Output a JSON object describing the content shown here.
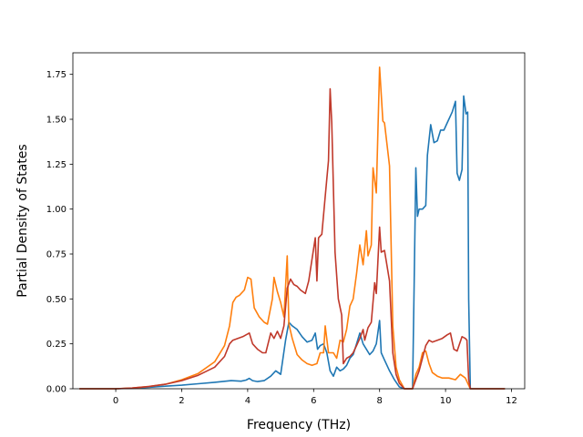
{
  "chart_data": {
    "type": "line",
    "title": "",
    "xlabel": "Frequency (THz)",
    "ylabel": "Partial Density of States",
    "xlim": [
      -1.3,
      12.4
    ],
    "ylim": [
      0,
      1.87
    ],
    "xticks": [
      0,
      2,
      4,
      6,
      8,
      10,
      12
    ],
    "yticks": [
      0.0,
      0.25,
      0.5,
      0.75,
      1.0,
      1.25,
      1.5,
      1.75
    ],
    "ytick_labels": [
      "0.00",
      "0.25",
      "0.50",
      "0.75",
      "1.00",
      "1.25",
      "1.50",
      "1.75"
    ],
    "grid": false,
    "legend": "none",
    "series": [
      {
        "color": "#1f77b4",
        "points": [
          [
            -1.1,
            0
          ],
          [
            0,
            0
          ],
          [
            0.5,
            0.003
          ],
          [
            1,
            0.008
          ],
          [
            1.5,
            0.014
          ],
          [
            2,
            0.02
          ],
          [
            2.5,
            0.028
          ],
          [
            3,
            0.036
          ],
          [
            3.5,
            0.045
          ],
          [
            3.8,
            0.042
          ],
          [
            3.95,
            0.048
          ],
          [
            4.05,
            0.058
          ],
          [
            4.15,
            0.045
          ],
          [
            4.3,
            0.04
          ],
          [
            4.5,
            0.045
          ],
          [
            4.7,
            0.07
          ],
          [
            4.85,
            0.1
          ],
          [
            5.0,
            0.08
          ],
          [
            5.15,
            0.27
          ],
          [
            5.25,
            0.37
          ],
          [
            5.35,
            0.35
          ],
          [
            5.5,
            0.33
          ],
          [
            5.65,
            0.29
          ],
          [
            5.8,
            0.26
          ],
          [
            5.95,
            0.27
          ],
          [
            6.05,
            0.31
          ],
          [
            6.12,
            0.22
          ],
          [
            6.2,
            0.24
          ],
          [
            6.3,
            0.25
          ],
          [
            6.4,
            0.2
          ],
          [
            6.5,
            0.1
          ],
          [
            6.6,
            0.07
          ],
          [
            6.7,
            0.12
          ],
          [
            6.8,
            0.1
          ],
          [
            6.9,
            0.11
          ],
          [
            7.0,
            0.13
          ],
          [
            7.1,
            0.17
          ],
          [
            7.2,
            0.19
          ],
          [
            7.3,
            0.25
          ],
          [
            7.4,
            0.31
          ],
          [
            7.5,
            0.25
          ],
          [
            7.6,
            0.22
          ],
          [
            7.7,
            0.19
          ],
          [
            7.8,
            0.21
          ],
          [
            7.9,
            0.25
          ],
          [
            8.0,
            0.38
          ],
          [
            8.05,
            0.2
          ],
          [
            8.15,
            0.16
          ],
          [
            8.3,
            0.1
          ],
          [
            8.45,
            0.05
          ],
          [
            8.6,
            0.01
          ],
          [
            8.75,
            0
          ],
          [
            9.0,
            0
          ],
          [
            9.05,
            0.6
          ],
          [
            9.1,
            1.23
          ],
          [
            9.15,
            0.96
          ],
          [
            9.2,
            1.0
          ],
          [
            9.3,
            1.0
          ],
          [
            9.4,
            1.02
          ],
          [
            9.45,
            1.3
          ],
          [
            9.55,
            1.47
          ],
          [
            9.65,
            1.37
          ],
          [
            9.75,
            1.38
          ],
          [
            9.85,
            1.44
          ],
          [
            9.95,
            1.44
          ],
          [
            10.05,
            1.48
          ],
          [
            10.2,
            1.54
          ],
          [
            10.3,
            1.6
          ],
          [
            10.35,
            1.2
          ],
          [
            10.42,
            1.16
          ],
          [
            10.5,
            1.22
          ],
          [
            10.55,
            1.63
          ],
          [
            10.62,
            1.53
          ],
          [
            10.67,
            1.54
          ],
          [
            10.7,
            0.5
          ],
          [
            10.75,
            0
          ],
          [
            11.8,
            0
          ]
        ]
      },
      {
        "color": "#ff7f0e",
        "points": [
          [
            -1.1,
            0
          ],
          [
            0,
            0
          ],
          [
            0.5,
            0.004
          ],
          [
            1,
            0.012
          ],
          [
            1.5,
            0.025
          ],
          [
            2,
            0.05
          ],
          [
            2.5,
            0.085
          ],
          [
            3,
            0.15
          ],
          [
            3.3,
            0.24
          ],
          [
            3.45,
            0.35
          ],
          [
            3.55,
            0.48
          ],
          [
            3.65,
            0.51
          ],
          [
            3.75,
            0.52
          ],
          [
            3.9,
            0.55
          ],
          [
            4.0,
            0.62
          ],
          [
            4.1,
            0.61
          ],
          [
            4.2,
            0.45
          ],
          [
            4.35,
            0.4
          ],
          [
            4.5,
            0.37
          ],
          [
            4.6,
            0.36
          ],
          [
            4.75,
            0.5
          ],
          [
            4.8,
            0.62
          ],
          [
            4.9,
            0.54
          ],
          [
            5.0,
            0.48
          ],
          [
            5.1,
            0.4
          ],
          [
            5.2,
            0.74
          ],
          [
            5.25,
            0.36
          ],
          [
            5.35,
            0.28
          ],
          [
            5.5,
            0.19
          ],
          [
            5.65,
            0.16
          ],
          [
            5.8,
            0.14
          ],
          [
            5.95,
            0.13
          ],
          [
            6.1,
            0.14
          ],
          [
            6.2,
            0.2
          ],
          [
            6.3,
            0.2
          ],
          [
            6.35,
            0.35
          ],
          [
            6.45,
            0.2
          ],
          [
            6.6,
            0.2
          ],
          [
            6.7,
            0.17
          ],
          [
            6.8,
            0.27
          ],
          [
            6.9,
            0.26
          ],
          [
            7.0,
            0.33
          ],
          [
            7.1,
            0.46
          ],
          [
            7.2,
            0.5
          ],
          [
            7.3,
            0.64
          ],
          [
            7.4,
            0.8
          ],
          [
            7.5,
            0.69
          ],
          [
            7.6,
            0.88
          ],
          [
            7.65,
            0.74
          ],
          [
            7.75,
            0.8
          ],
          [
            7.8,
            1.23
          ],
          [
            7.9,
            1.09
          ],
          [
            8.0,
            1.79
          ],
          [
            8.1,
            1.49
          ],
          [
            8.15,
            1.48
          ],
          [
            8.3,
            1.24
          ],
          [
            8.4,
            0.35
          ],
          [
            8.5,
            0.12
          ],
          [
            8.6,
            0.05
          ],
          [
            8.75,
            0
          ],
          [
            9.0,
            0
          ],
          [
            9.1,
            0.08
          ],
          [
            9.2,
            0.12
          ],
          [
            9.3,
            0.2
          ],
          [
            9.4,
            0.21
          ],
          [
            9.5,
            0.14
          ],
          [
            9.6,
            0.09
          ],
          [
            9.75,
            0.07
          ],
          [
            9.9,
            0.06
          ],
          [
            10.1,
            0.06
          ],
          [
            10.3,
            0.05
          ],
          [
            10.45,
            0.08
          ],
          [
            10.6,
            0.06
          ],
          [
            10.7,
            0.02
          ],
          [
            10.75,
            0
          ],
          [
            11.8,
            0
          ]
        ]
      },
      {
        "color": "#c0392b",
        "points": [
          [
            -1.1,
            0
          ],
          [
            0,
            0
          ],
          [
            0.5,
            0.004
          ],
          [
            1,
            0.012
          ],
          [
            1.5,
            0.025
          ],
          [
            2,
            0.045
          ],
          [
            2.5,
            0.075
          ],
          [
            3,
            0.12
          ],
          [
            3.3,
            0.18
          ],
          [
            3.45,
            0.25
          ],
          [
            3.55,
            0.27
          ],
          [
            3.7,
            0.28
          ],
          [
            3.85,
            0.29
          ],
          [
            3.95,
            0.3
          ],
          [
            4.05,
            0.31
          ],
          [
            4.15,
            0.25
          ],
          [
            4.3,
            0.22
          ],
          [
            4.45,
            0.2
          ],
          [
            4.55,
            0.2
          ],
          [
            4.7,
            0.31
          ],
          [
            4.8,
            0.28
          ],
          [
            4.9,
            0.32
          ],
          [
            5.0,
            0.28
          ],
          [
            5.1,
            0.35
          ],
          [
            5.2,
            0.56
          ],
          [
            5.3,
            0.61
          ],
          [
            5.4,
            0.58
          ],
          [
            5.5,
            0.57
          ],
          [
            5.6,
            0.55
          ],
          [
            5.75,
            0.53
          ],
          [
            5.85,
            0.6
          ],
          [
            5.95,
            0.72
          ],
          [
            6.05,
            0.84
          ],
          [
            6.1,
            0.6
          ],
          [
            6.15,
            0.84
          ],
          [
            6.25,
            0.86
          ],
          [
            6.35,
            1.07
          ],
          [
            6.45,
            1.27
          ],
          [
            6.5,
            1.67
          ],
          [
            6.55,
            1.48
          ],
          [
            6.65,
            0.76
          ],
          [
            6.75,
            0.5
          ],
          [
            6.85,
            0.41
          ],
          [
            6.9,
            0.14
          ],
          [
            7.0,
            0.17
          ],
          [
            7.1,
            0.18
          ],
          [
            7.2,
            0.2
          ],
          [
            7.3,
            0.24
          ],
          [
            7.4,
            0.28
          ],
          [
            7.5,
            0.33
          ],
          [
            7.55,
            0.27
          ],
          [
            7.65,
            0.34
          ],
          [
            7.75,
            0.37
          ],
          [
            7.85,
            0.59
          ],
          [
            7.9,
            0.53
          ],
          [
            8.0,
            0.9
          ],
          [
            8.05,
            0.76
          ],
          [
            8.15,
            0.77
          ],
          [
            8.3,
            0.6
          ],
          [
            8.4,
            0.2
          ],
          [
            8.5,
            0.08
          ],
          [
            8.6,
            0.03
          ],
          [
            8.75,
            0
          ],
          [
            9.0,
            0
          ],
          [
            9.2,
            0.1
          ],
          [
            9.4,
            0.24
          ],
          [
            9.5,
            0.27
          ],
          [
            9.6,
            0.26
          ],
          [
            9.75,
            0.27
          ],
          [
            9.9,
            0.28
          ],
          [
            10.05,
            0.3
          ],
          [
            10.15,
            0.31
          ],
          [
            10.25,
            0.22
          ],
          [
            10.35,
            0.21
          ],
          [
            10.5,
            0.29
          ],
          [
            10.6,
            0.28
          ],
          [
            10.65,
            0.27
          ],
          [
            10.7,
            0.05
          ],
          [
            10.75,
            0
          ],
          [
            11.8,
            0
          ]
        ]
      }
    ]
  }
}
